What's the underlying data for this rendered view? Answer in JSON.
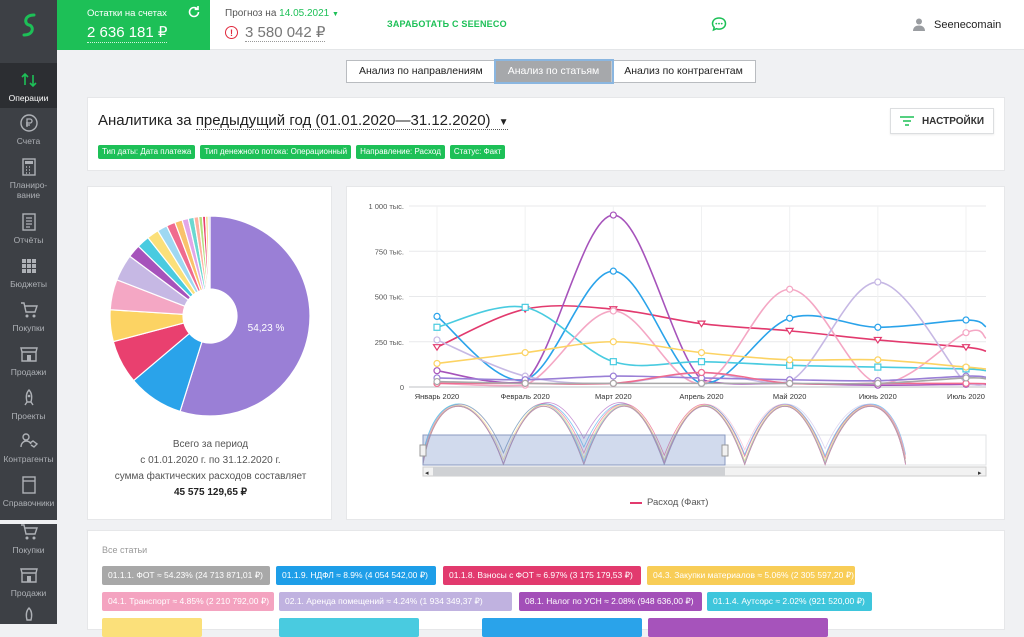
{
  "header": {
    "balance_label": "Остатки на счетах",
    "balance_value": "2 636 181 ₽",
    "forecast_label": "Прогноз на",
    "forecast_date": "14.05.2021",
    "forecast_value": "3 580 042 ₽",
    "earn_link": "ЗАРАБОТАТЬ С SEENECO",
    "user_name": "Seenecomain"
  },
  "sidebar": {
    "items": [
      {
        "label": "Операции"
      },
      {
        "label": "Счета"
      },
      {
        "label": "Планиро-\nвание"
      },
      {
        "label": "Отчёты"
      },
      {
        "label": "Бюджеты"
      },
      {
        "label": "Покупки"
      },
      {
        "label": "Продажи"
      },
      {
        "label": "Проекты"
      },
      {
        "label": "Контрагенты"
      },
      {
        "label": "Справочники"
      },
      {
        "label": "Покупки"
      },
      {
        "label": "Продажи"
      }
    ]
  },
  "tabs": [
    "Анализ по направлениям",
    "Анализ по статьям",
    "Анализ по контрагентам"
  ],
  "analytics": {
    "title_prefix": "Аналитика за",
    "period": "предыдущий год (01.01.2020—31.12.2020)",
    "settings_label": "НАСТРОЙКИ",
    "filters": [
      "Тип даты: Дата платежа",
      "Тип денежного потока: Операционный",
      "Направление: Расход",
      "Статус: Факт"
    ]
  },
  "summary": {
    "line1": "Всего за период",
    "line2": "с 01.01.2020 г. по 31.12.2020 г.",
    "line3": "сумма фактических расходов составляет",
    "total": "45 575 129,65 ₽"
  },
  "articles_title": "Все статьи",
  "articles": [
    {
      "label": "01.1.1. ФОТ ≈ 54.23% (24 713 871,01 ₽)",
      "color": "#a8a8a8"
    },
    {
      "label": "01.1.9. НДФЛ ≈ 8.9% (4 054 542,00 ₽)",
      "color": "#1e9ee8"
    },
    {
      "label": "01.1.8. Взносы с ФОТ ≈ 6.97% (3 175 179,53 ₽)",
      "color": "#e23a6e"
    },
    {
      "label": "04.3. Закупки материалов ≈ 5.06% (2 305 597,20 ₽)",
      "color": "#f8cd57"
    },
    {
      "label": "04.1. Транспорт ≈ 4.85% (2 210 792,00 ₽)",
      "color": "#f4a3c0"
    },
    {
      "label": "02.1. Аренда помещений ≈ 4.24% (1 934 349,37 ₽)",
      "color": "#c0b2e0"
    },
    {
      "label": "08.1. Налог по УСН ≈ 2.08% (948 636,00 ₽)",
      "color": "#a34fb8"
    },
    {
      "label": "01.1.4. Аутсорс ≈ 2.02% (921 520,00 ₽)",
      "color": "#3ec6dc"
    }
  ],
  "pie": {
    "label": "54,23 %",
    "slices": [
      {
        "value": 54.23,
        "color": "#9a7fd6"
      },
      {
        "value": 8.9,
        "color": "#2aa3ea"
      },
      {
        "value": 6.97,
        "color": "#e9406f"
      },
      {
        "value": 5.06,
        "color": "#fcd363"
      },
      {
        "value": 4.85,
        "color": "#f4a7c4"
      },
      {
        "value": 4.24,
        "color": "#c6b8e4"
      },
      {
        "value": 2.08,
        "color": "#a653bb"
      },
      {
        "value": 2.02,
        "color": "#49cbe0"
      },
      {
        "value": 1.9,
        "color": "#fbe07a"
      },
      {
        "value": 1.6,
        "color": "#9fd8f2"
      },
      {
        "value": 1.4,
        "color": "#f06b8f"
      },
      {
        "value": 1.2,
        "color": "#f9c26b"
      },
      {
        "value": 1.0,
        "color": "#e3a6e8"
      },
      {
        "value": 0.9,
        "color": "#6bd8d0"
      },
      {
        "value": 0.75,
        "color": "#ffb0a0"
      },
      {
        "value": 0.6,
        "color": "#b4e080"
      },
      {
        "value": 0.5,
        "color": "#e9406f"
      },
      {
        "value": 0.4,
        "color": "#f6d27a"
      },
      {
        "value": 0.3,
        "color": "#c7d0f0"
      }
    ]
  },
  "chart_data": {
    "type": "line",
    "categories": [
      "Январь 2020",
      "Февраль 2020",
      "Март 2020",
      "Апрель 2020",
      "Май 2020",
      "Июнь 2020",
      "Июль 2020"
    ],
    "y_ticks": [
      "1 000 тыс.",
      "750 тыс.",
      "500 тыс.",
      "250 тыс.",
      "0"
    ],
    "ylim": [
      0,
      1000
    ],
    "legend": "Расход (Факт)",
    "series": [
      {
        "color": "#e23a6e",
        "marker": "tri",
        "values": [
          220,
          430,
          430,
          350,
          310,
          260,
          220
        ]
      },
      {
        "color": "#a653bb",
        "marker": "circle",
        "values": [
          90,
          30,
          950,
          40,
          20,
          10,
          15
        ]
      },
      {
        "color": "#2aa3ea",
        "marker": "circle",
        "values": [
          390,
          40,
          640,
          20,
          380,
          330,
          370
        ]
      },
      {
        "color": "#49cbe0",
        "marker": "square",
        "values": [
          330,
          440,
          140,
          140,
          120,
          110,
          100
        ]
      },
      {
        "color": "#f4a7c4",
        "marker": "circle",
        "values": [
          20,
          10,
          420,
          20,
          540,
          20,
          300
        ]
      },
      {
        "color": "#c6b8e4",
        "marker": "circle",
        "values": [
          260,
          60,
          20,
          80,
          30,
          580,
          20
        ]
      },
      {
        "color": "#fcd363",
        "marker": "circle",
        "values": [
          130,
          190,
          250,
          190,
          150,
          150,
          110
        ]
      },
      {
        "color": "#9a7fd6",
        "marker": "circle",
        "values": [
          50,
          40,
          60,
          50,
          40,
          35,
          60
        ]
      },
      {
        "color": "#f06b8f",
        "marker": "circle",
        "values": [
          20,
          20,
          20,
          80,
          20,
          20,
          20
        ]
      },
      {
        "color": "#a8a8a8",
        "marker": "circle",
        "values": [
          30,
          20,
          20,
          20,
          20,
          20,
          50
        ]
      }
    ]
  }
}
